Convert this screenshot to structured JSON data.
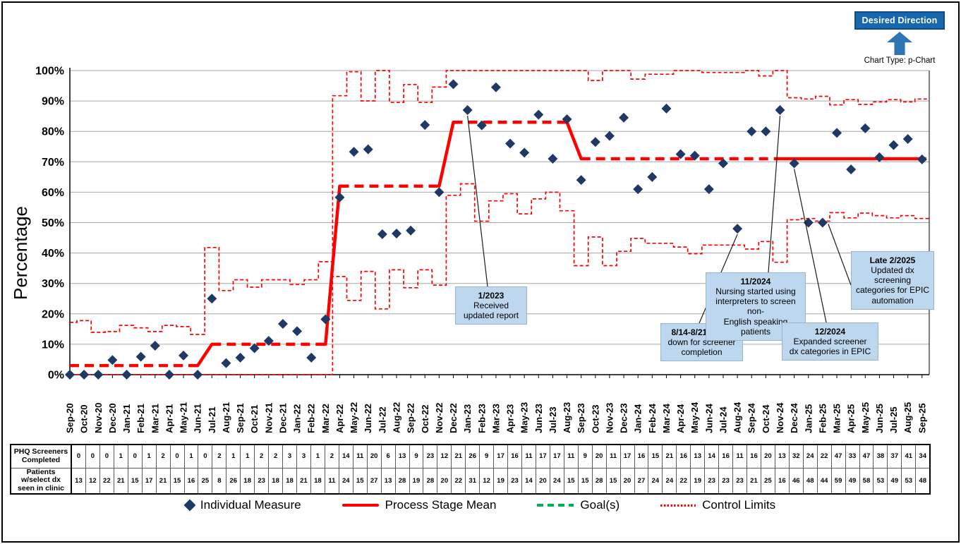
{
  "header": {
    "desired_direction_label": "Desired Direction",
    "chart_type_caption": "Chart Type: p-Chart"
  },
  "colors": {
    "individual_marker": "#1F3864",
    "mean_line": "#FF0000",
    "control_limits": "#FF0000",
    "goal_line": "#00B050",
    "annotation_fill": "#BDD7EE",
    "desired_box_fill": "#1667AE",
    "gridline": "#A6A6A6"
  },
  "chart_data": {
    "type": "scatter",
    "subtype": "p-chart control chart (Individual Measure with Process Stage Mean and Control Limits)",
    "title": "",
    "xlabel": "",
    "ylabel": "Percentage",
    "ylim": [
      0,
      100
    ],
    "y_ticks": [
      "0%",
      "10%",
      "20%",
      "30%",
      "40%",
      "50%",
      "60%",
      "70%",
      "80%",
      "90%",
      "100%"
    ],
    "grid": "horizontal",
    "legend_position": "bottom",
    "x": [
      "Sep-20",
      "Oct-20",
      "Nov-20",
      "Dec-20",
      "Jan-21",
      "Feb-21",
      "Mar-21",
      "Apr-21",
      "May-21",
      "Jun-21",
      "Jul-21",
      "Aug-21",
      "Sep-21",
      "Oct-21",
      "Nov-21",
      "Dec-21",
      "Jan-22",
      "Feb-22",
      "Mar-22",
      "Apr-22",
      "May-22",
      "Jun-22",
      "Jul-22",
      "Aug-22",
      "Sep-22",
      "Oct-22",
      "Nov-22",
      "Dec-22",
      "Jan-23",
      "Feb-23",
      "Mar-23",
      "Apr-23",
      "May-23",
      "Jun-23",
      "Jul-23",
      "Aug-23",
      "Sep-23",
      "Oct-23",
      "Nov-23",
      "Dec-23",
      "Jan-24",
      "Feb-24",
      "Mar-24",
      "Apr-24",
      "May-24",
      "Jun-24",
      "Jul-24",
      "Aug-24",
      "Sep-24",
      "Oct-24",
      "Nov-24",
      "Dec-24",
      "Jan-25",
      "Feb-25",
      "Mar-25",
      "Apr-25",
      "May-25",
      "Jun-25",
      "Jul-25",
      "Aug-25",
      "Sep-25"
    ],
    "series": [
      {
        "name": "Individual Measure",
        "type": "points",
        "values": [
          0,
          0,
          0,
          4.8,
          0,
          5.9,
          9.5,
          0,
          6.3,
          0,
          25,
          3.8,
          5.6,
          8.7,
          11.1,
          16.7,
          14.3,
          5.6,
          18.2,
          58.3,
          73.3,
          74.1,
          46.2,
          46.4,
          47.4,
          82.1,
          60,
          95.5,
          87,
          82,
          94.5,
          76,
          73,
          85.5,
          71,
          84,
          64,
          76.5,
          78.5,
          84.5,
          61,
          65,
          87.5,
          72.5,
          72,
          61,
          69.5,
          48,
          80,
          80,
          87,
          69.5,
          50,
          50,
          79.5,
          67.5,
          81,
          71.5,
          75.5,
          77.5,
          70.8
        ]
      },
      {
        "name": "Process Stage Mean",
        "type": "step-segments",
        "solid_from": "Nov-24",
        "segments": [
          {
            "from": "Sep-20",
            "to": "Jun-21",
            "mean": 3
          },
          {
            "from": "Jul-21",
            "to": "Mar-22",
            "mean": 10
          },
          {
            "from": "Apr-22",
            "to": "Nov-22",
            "mean": 62
          },
          {
            "from": "Dec-22",
            "to": "Aug-23",
            "mean": 83
          },
          {
            "from": "Sep-23",
            "to": "Sep-25",
            "mean": 71
          }
        ]
      },
      {
        "name": "Goal(s)",
        "type": "line",
        "values": null,
        "note": "legend entry only; no goal line plotted"
      },
      {
        "name": "Control Limits",
        "type": "step-lines",
        "derivation": "stage mean ± 3·sqrt(mean·(100−mean)/n) per month, n = Patients w/select dx seen in clinic, clamped to [0,100]"
      }
    ]
  },
  "table": {
    "rows": [
      {
        "label_lines": [
          "PHQ Screeners",
          "Completed"
        ],
        "values": [
          0,
          0,
          0,
          1,
          0,
          1,
          2,
          0,
          1,
          0,
          2,
          1,
          1,
          2,
          2,
          3,
          3,
          1,
          2,
          14,
          11,
          20,
          6,
          13,
          9,
          23,
          12,
          21,
          26,
          9,
          17,
          16,
          11,
          17,
          17,
          11,
          9,
          20,
          11,
          17,
          16,
          15,
          21,
          16,
          13,
          14,
          16,
          11,
          16,
          20,
          13,
          32,
          24,
          22,
          47,
          33,
          47,
          38,
          37,
          41,
          34
        ]
      },
      {
        "label_lines": [
          "Patients",
          "w/select dx",
          "seen in clinic"
        ],
        "values": [
          13,
          12,
          22,
          21,
          15,
          17,
          21,
          15,
          16,
          25,
          8,
          26,
          18,
          23,
          18,
          18,
          21,
          18,
          11,
          24,
          15,
          27,
          13,
          28,
          19,
          28,
          20,
          22,
          31,
          12,
          19,
          23,
          14,
          20,
          24,
          15,
          15,
          28,
          15,
          20,
          27,
          24,
          24,
          22,
          19,
          23,
          23,
          23,
          21,
          25,
          16,
          46,
          48,
          44,
          59,
          49,
          58,
          53,
          49,
          53,
          48
        ]
      }
    ]
  },
  "annotations": [
    {
      "id": "a1",
      "lines": [
        "1/2023",
        "Received",
        "updated report"
      ],
      "anchor_month": "Jan-23",
      "anchor_value": 87
    },
    {
      "id": "a2",
      "lines": [
        "8/14-8/21 iPads",
        "down for screener",
        "completion"
      ],
      "anchor_month": "Aug-24",
      "anchor_value": 48
    },
    {
      "id": "a3",
      "lines": [
        "11/2024",
        "Nursing started using",
        "interpreters to screen non-",
        "English speaking patients"
      ],
      "anchor_month": "Nov-24",
      "anchor_value": 87
    },
    {
      "id": "a4",
      "lines": [
        "12/2024",
        "Expanded screener",
        "dx categories in EPIC"
      ],
      "anchor_month": "Dec-24",
      "anchor_value": 69.5
    },
    {
      "id": "a5",
      "lines": [
        "Late 2/2025",
        "Updated dx",
        "screening",
        "categories for EPIC",
        "automation"
      ],
      "anchor_month": "Feb-25",
      "anchor_value": 50
    }
  ],
  "legend": {
    "items": [
      {
        "label": "Individual Measure"
      },
      {
        "label": "Process Stage Mean"
      },
      {
        "label": "Goal(s)"
      },
      {
        "label": "Control Limits"
      }
    ]
  }
}
